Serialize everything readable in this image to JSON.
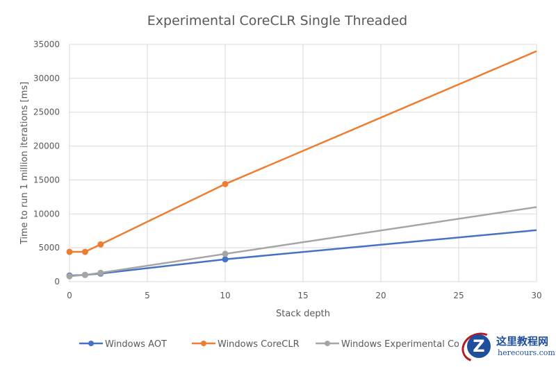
{
  "chart_data": {
    "type": "line",
    "title": "Experimental CoreCLR Single Threaded",
    "xlabel": "Stack depth",
    "ylabel": "Time to run 1 million iterations [ms]",
    "xlim": [
      0,
      30
    ],
    "ylim": [
      0,
      35000
    ],
    "xticks": [
      0,
      5,
      10,
      15,
      20,
      25,
      30
    ],
    "yticks": [
      0,
      5000,
      10000,
      15000,
      20000,
      25000,
      30000,
      35000
    ],
    "grid": true,
    "legend_position": "bottom",
    "series": [
      {
        "name": "Windows AOT",
        "color": "#4472c4",
        "x": [
          0,
          1,
          2,
          10,
          30
        ],
        "y": [
          900,
          1000,
          1200,
          3300,
          7600
        ],
        "markers": [
          true,
          true,
          true,
          true,
          false
        ]
      },
      {
        "name": "Windows CoreCLR",
        "color": "#ed7d31",
        "x": [
          0,
          1,
          2,
          10,
          30
        ],
        "y": [
          4400,
          4400,
          5500,
          14400,
          34000
        ],
        "markers": [
          true,
          true,
          true,
          true,
          false
        ]
      },
      {
        "name": "Windows Experimental Co",
        "color": "#a5a5a5",
        "x": [
          0,
          1,
          2,
          10,
          30
        ],
        "y": [
          800,
          1000,
          1300,
          4100,
          11000
        ],
        "markers": [
          true,
          true,
          true,
          true,
          false
        ]
      }
    ]
  },
  "watermark": {
    "logo_letter": "Z",
    "chinese_text": "这里教程网",
    "domain_text": "herecours.com"
  }
}
